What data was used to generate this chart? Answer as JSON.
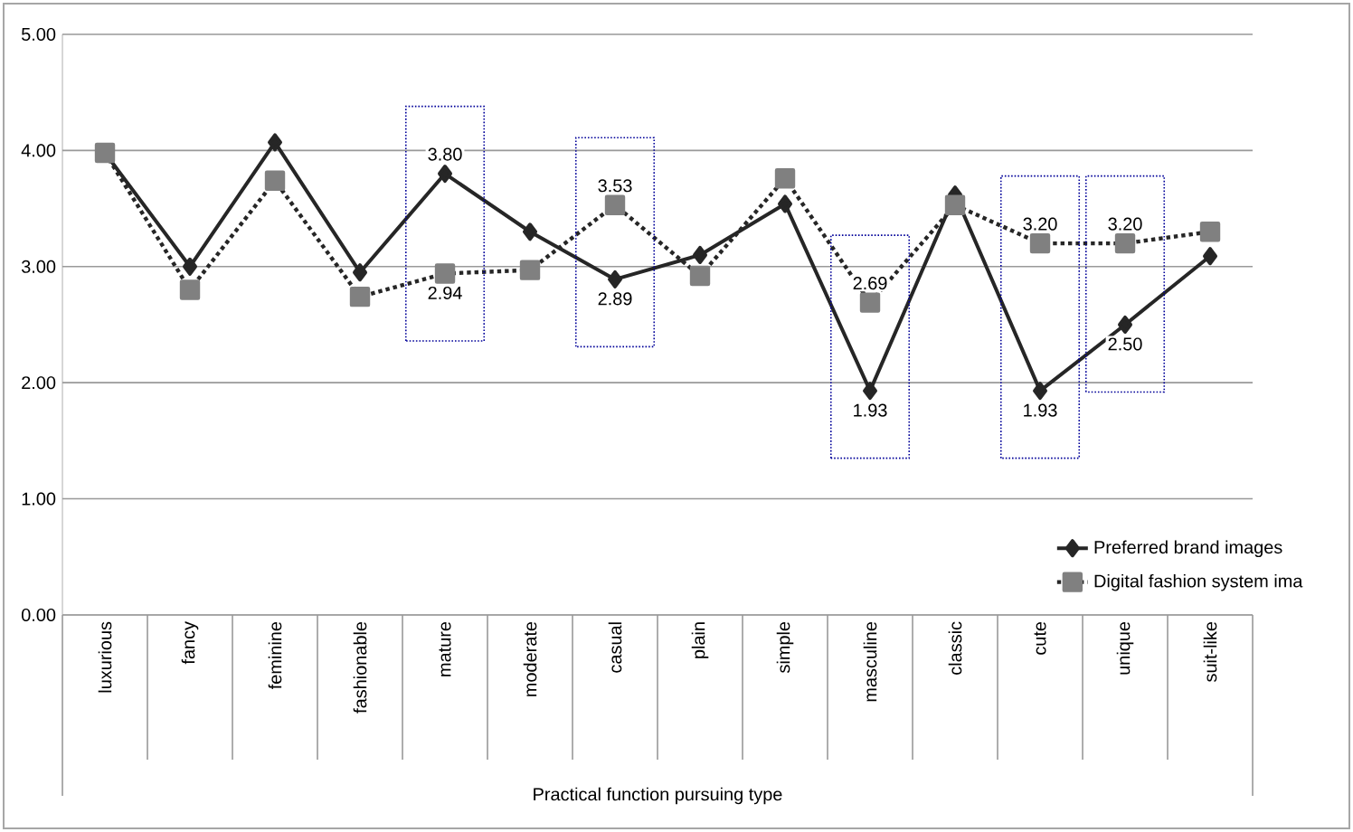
{
  "chart_data": {
    "type": "line",
    "xlabel": "Practical function pursuing type",
    "categories": [
      "luxurious",
      "fancy",
      "feminine",
      "fashionable",
      "mature",
      "moderate",
      "casual",
      "plain",
      "simple",
      "masculine",
      "classic",
      "cute",
      "unique",
      "suit-like"
    ],
    "series": [
      {
        "name": "Preferred brand images",
        "color": "#262626",
        "marker": "diamond",
        "line_style": "solid",
        "values": [
          3.98,
          3.0,
          4.07,
          2.95,
          3.8,
          3.3,
          2.89,
          3.1,
          3.54,
          1.93,
          3.62,
          1.93,
          2.5,
          3.09
        ],
        "value_labels": [
          null,
          null,
          null,
          null,
          "3.80",
          null,
          "2.89",
          null,
          null,
          "1.93",
          null,
          "1.93",
          "2.50",
          null
        ]
      },
      {
        "name": "Digital fashion system ima",
        "color": "#808080",
        "marker": "square",
        "line_style": "dotted",
        "values": [
          3.98,
          2.8,
          3.74,
          2.74,
          2.94,
          2.97,
          3.53,
          2.92,
          3.76,
          2.69,
          3.53,
          3.2,
          3.2,
          3.3
        ],
        "value_labels": [
          null,
          null,
          null,
          null,
          "2.94",
          null,
          "3.53",
          null,
          null,
          "2.69",
          null,
          "3.20",
          "3.20",
          null
        ]
      }
    ],
    "ylim": [
      0,
      5
    ],
    "yticks": [
      {
        "value": 0,
        "label": "0.00"
      },
      {
        "value": 1,
        "label": "1.00"
      },
      {
        "value": 2,
        "label": "2.00"
      },
      {
        "value": 3,
        "label": "3.00"
      },
      {
        "value": 4,
        "label": "4.00"
      },
      {
        "value": 5,
        "label": "5.00"
      }
    ],
    "grid": "y",
    "legend": "bottom right"
  }
}
